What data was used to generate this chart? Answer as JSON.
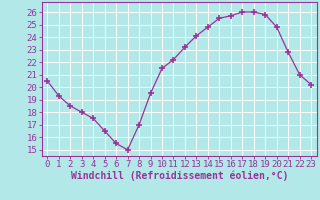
{
  "x": [
    0,
    1,
    2,
    3,
    4,
    5,
    6,
    7,
    8,
    9,
    10,
    11,
    12,
    13,
    14,
    15,
    16,
    17,
    18,
    19,
    20,
    21,
    22,
    23
  ],
  "y": [
    20.5,
    19.3,
    18.5,
    18.0,
    17.5,
    16.5,
    15.5,
    15.0,
    17.0,
    19.5,
    21.5,
    22.2,
    23.2,
    24.1,
    24.8,
    25.5,
    25.7,
    26.0,
    26.0,
    25.8,
    24.8,
    22.8,
    21.0,
    20.2
  ],
  "line_color": "#993399",
  "marker": "+",
  "marker_size": 4,
  "marker_lw": 1.2,
  "bg_color": "#b2e8e8",
  "grid_color": "#ffffff",
  "xlabel": "Windchill (Refroidissement éolien,°C)",
  "ylabel_ticks": [
    15,
    16,
    17,
    18,
    19,
    20,
    21,
    22,
    23,
    24,
    25,
    26
  ],
  "ylim": [
    14.5,
    26.8
  ],
  "xlim": [
    -0.5,
    23.5
  ],
  "tick_fontsize": 6.5,
  "xlabel_fontsize": 7,
  "tick_color": "#993399",
  "label_color": "#993399",
  "spine_color": "#993399"
}
